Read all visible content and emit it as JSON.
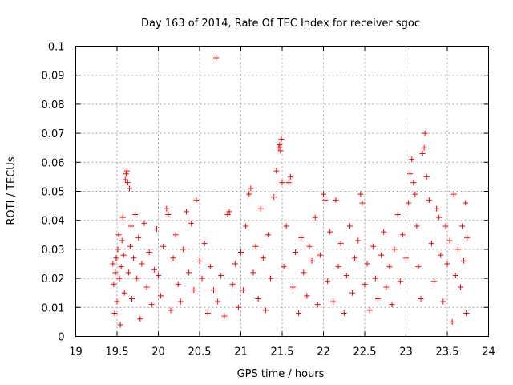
{
  "chart_data": {
    "type": "scatter",
    "title": "Day 163 of 2014, Rate Of TEC Index for receiver sgoc",
    "xlabel": "GPS time / hours",
    "ylabel": "ROTI / TECUs",
    "xlim": [
      19,
      24
    ],
    "ylim": [
      0,
      0.1
    ],
    "x_ticks": [
      19,
      19.5,
      20,
      20.5,
      21,
      21.5,
      22,
      22.5,
      23,
      23.5,
      24
    ],
    "x_tick_labels": [
      "19",
      "19.5",
      "20",
      "20.5",
      "21",
      "21.5",
      "22",
      "22.5",
      "23",
      "23.5",
      "24"
    ],
    "y_ticks": [
      0,
      0.01,
      0.02,
      0.03,
      0.04,
      0.05,
      0.06,
      0.07,
      0.08,
      0.09,
      0.1
    ],
    "y_tick_labels": [
      "0",
      "0.01",
      "0.02",
      "0.03",
      "0.04",
      "0.05",
      "0.06",
      "0.07",
      "0.08",
      "0.09",
      "0.1"
    ],
    "grid": true,
    "marker": "+",
    "color": "#ff0000",
    "series": [
      {
        "name": "ROTI",
        "points": [
          [
            19.45,
            0.025
          ],
          [
            19.46,
            0.018
          ],
          [
            19.47,
            0.008
          ],
          [
            19.48,
            0.022
          ],
          [
            19.49,
            0.027
          ],
          [
            19.5,
            0.012
          ],
          [
            19.51,
            0.03
          ],
          [
            19.52,
            0.035
          ],
          [
            19.53,
            0.02
          ],
          [
            19.54,
            0.004
          ],
          [
            19.55,
            0.024
          ],
          [
            19.56,
            0.033
          ],
          [
            19.57,
            0.041
          ],
          [
            19.58,
            0.028
          ],
          [
            19.59,
            0.015
          ],
          [
            19.6,
            0.054
          ],
          [
            19.61,
            0.056
          ],
          [
            19.62,
            0.057
          ],
          [
            19.63,
            0.053
          ],
          [
            19.64,
            0.022
          ],
          [
            19.65,
            0.051
          ],
          [
            19.66,
            0.031
          ],
          [
            19.67,
            0.038
          ],
          [
            19.68,
            0.013
          ],
          [
            19.7,
            0.027
          ],
          [
            19.72,
            0.042
          ],
          [
            19.74,
            0.02
          ],
          [
            19.76,
            0.034
          ],
          [
            19.78,
            0.006
          ],
          [
            19.8,
            0.025
          ],
          [
            19.83,
            0.039
          ],
          [
            19.86,
            0.017
          ],
          [
            19.89,
            0.029
          ],
          [
            19.92,
            0.011
          ],
          [
            19.95,
            0.023
          ],
          [
            19.98,
            0.037
          ],
          [
            20.0,
            0.021
          ],
          [
            20.03,
            0.014
          ],
          [
            20.06,
            0.031
          ],
          [
            20.1,
            0.044
          ],
          [
            20.12,
            0.042
          ],
          [
            20.15,
            0.009
          ],
          [
            20.18,
            0.027
          ],
          [
            20.21,
            0.035
          ],
          [
            20.24,
            0.018
          ],
          [
            20.27,
            0.012
          ],
          [
            20.3,
            0.03
          ],
          [
            20.34,
            0.043
          ],
          [
            20.37,
            0.022
          ],
          [
            20.4,
            0.039
          ],
          [
            20.43,
            0.016
          ],
          [
            20.46,
            0.047
          ],
          [
            20.5,
            0.026
          ],
          [
            20.53,
            0.02
          ],
          [
            20.56,
            0.032
          ],
          [
            20.6,
            0.008
          ],
          [
            20.63,
            0.024
          ],
          [
            20.67,
            0.016
          ],
          [
            20.7,
            0.096
          ],
          [
            20.72,
            0.012
          ],
          [
            20.76,
            0.021
          ],
          [
            20.8,
            0.007
          ],
          [
            20.84,
            0.042
          ],
          [
            20.86,
            0.043
          ],
          [
            20.9,
            0.018
          ],
          [
            20.93,
            0.025
          ],
          [
            20.97,
            0.01
          ],
          [
            21.0,
            0.029
          ],
          [
            21.03,
            0.016
          ],
          [
            21.06,
            0.038
          ],
          [
            21.1,
            0.049
          ],
          [
            21.12,
            0.051
          ],
          [
            21.15,
            0.022
          ],
          [
            21.18,
            0.031
          ],
          [
            21.21,
            0.013
          ],
          [
            21.24,
            0.044
          ],
          [
            21.27,
            0.027
          ],
          [
            21.3,
            0.009
          ],
          [
            21.33,
            0.035
          ],
          [
            21.36,
            0.02
          ],
          [
            21.4,
            0.048
          ],
          [
            21.43,
            0.057
          ],
          [
            21.46,
            0.065
          ],
          [
            21.47,
            0.066
          ],
          [
            21.48,
            0.064
          ],
          [
            21.49,
            0.068
          ],
          [
            21.5,
            0.053
          ],
          [
            21.52,
            0.024
          ],
          [
            21.55,
            0.038
          ],
          [
            21.58,
            0.053
          ],
          [
            21.6,
            0.055
          ],
          [
            21.63,
            0.017
          ],
          [
            21.66,
            0.029
          ],
          [
            21.7,
            0.008
          ],
          [
            21.73,
            0.034
          ],
          [
            21.76,
            0.022
          ],
          [
            21.8,
            0.014
          ],
          [
            21.83,
            0.031
          ],
          [
            21.86,
            0.026
          ],
          [
            21.9,
            0.041
          ],
          [
            21.93,
            0.011
          ],
          [
            21.96,
            0.028
          ],
          [
            22.0,
            0.049
          ],
          [
            22.02,
            0.047
          ],
          [
            22.05,
            0.019
          ],
          [
            22.08,
            0.036
          ],
          [
            22.12,
            0.012
          ],
          [
            22.15,
            0.047
          ],
          [
            22.18,
            0.024
          ],
          [
            22.21,
            0.032
          ],
          [
            22.25,
            0.008
          ],
          [
            22.28,
            0.021
          ],
          [
            22.32,
            0.038
          ],
          [
            22.35,
            0.015
          ],
          [
            22.38,
            0.027
          ],
          [
            22.42,
            0.033
          ],
          [
            22.45,
            0.049
          ],
          [
            22.47,
            0.046
          ],
          [
            22.5,
            0.018
          ],
          [
            22.53,
            0.025
          ],
          [
            22.56,
            0.009
          ],
          [
            22.6,
            0.031
          ],
          [
            22.63,
            0.02
          ],
          [
            22.66,
            0.013
          ],
          [
            22.7,
            0.028
          ],
          [
            22.73,
            0.036
          ],
          [
            22.76,
            0.017
          ],
          [
            22.8,
            0.024
          ],
          [
            22.83,
            0.011
          ],
          [
            22.86,
            0.03
          ],
          [
            22.9,
            0.042
          ],
          [
            22.93,
            0.019
          ],
          [
            22.96,
            0.035
          ],
          [
            23.0,
            0.027
          ],
          [
            23.03,
            0.046
          ],
          [
            23.05,
            0.056
          ],
          [
            23.07,
            0.061
          ],
          [
            23.09,
            0.053
          ],
          [
            23.11,
            0.049
          ],
          [
            23.13,
            0.038
          ],
          [
            23.15,
            0.024
          ],
          [
            23.18,
            0.013
          ],
          [
            23.2,
            0.063
          ],
          [
            23.22,
            0.065
          ],
          [
            23.23,
            0.07
          ],
          [
            23.25,
            0.055
          ],
          [
            23.28,
            0.047
          ],
          [
            23.31,
            0.032
          ],
          [
            23.34,
            0.019
          ],
          [
            23.37,
            0.044
          ],
          [
            23.4,
            0.041
          ],
          [
            23.42,
            0.028
          ],
          [
            23.45,
            0.012
          ],
          [
            23.48,
            0.038
          ],
          [
            23.5,
            0.025
          ],
          [
            23.53,
            0.033
          ],
          [
            23.56,
            0.005
          ],
          [
            23.58,
            0.049
          ],
          [
            23.6,
            0.021
          ],
          [
            23.63,
            0.03
          ],
          [
            23.66,
            0.017
          ],
          [
            23.68,
            0.038
          ],
          [
            23.7,
            0.026
          ],
          [
            23.72,
            0.046
          ],
          [
            23.73,
            0.008
          ],
          [
            23.74,
            0.034
          ]
        ]
      }
    ]
  }
}
